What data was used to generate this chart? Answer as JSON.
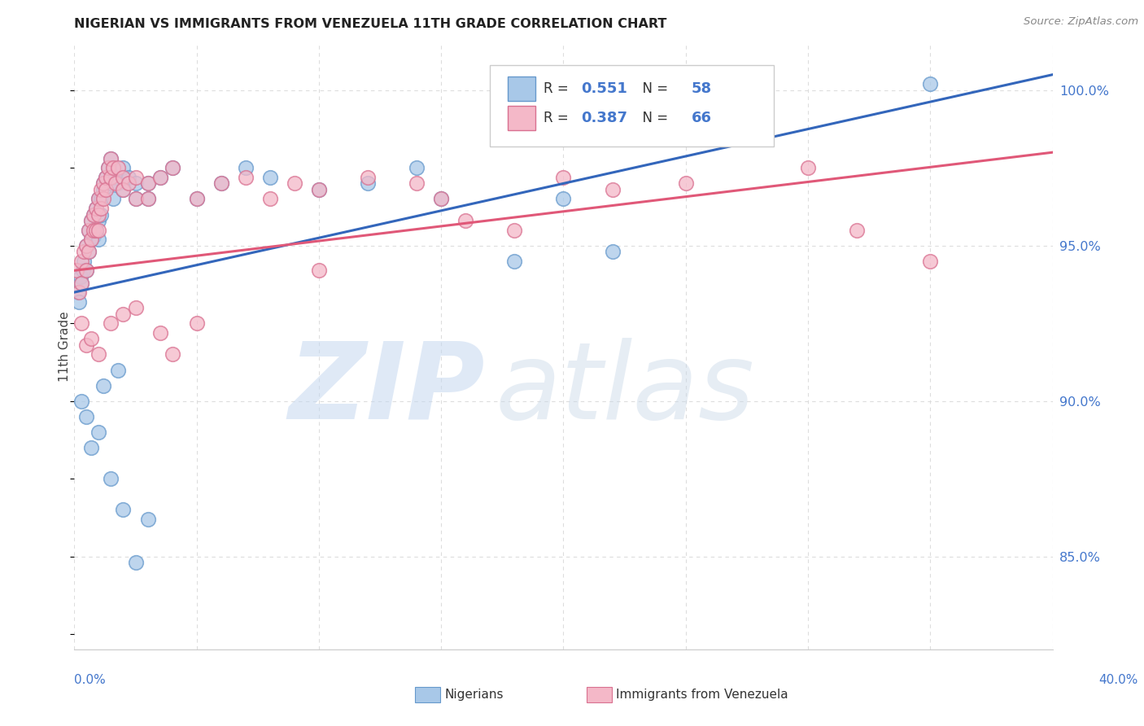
{
  "title": "NIGERIAN VS IMMIGRANTS FROM VENEZUELA 11TH GRADE CORRELATION CHART",
  "source": "Source: ZipAtlas.com",
  "ylabel": "11th Grade",
  "xmin": 0.0,
  "xmax": 40.0,
  "ymin": 82.0,
  "ymax": 101.5,
  "yticks": [
    85.0,
    90.0,
    95.0,
    100.0
  ],
  "ytick_labels": [
    "85.0%",
    "90.0%",
    "95.0%",
    "100.0%"
  ],
  "xticks": [
    0.0,
    5.0,
    10.0,
    15.0,
    20.0,
    25.0,
    30.0,
    35.0,
    40.0
  ],
  "blue_color": "#a8c8e8",
  "blue_edge_color": "#6699cc",
  "pink_color": "#f4b8c8",
  "pink_edge_color": "#d97090",
  "blue_line_color": "#3366bb",
  "pink_line_color": "#e05878",
  "blue_scatter": [
    [
      0.15,
      93.5
    ],
    [
      0.2,
      93.2
    ],
    [
      0.25,
      94.0
    ],
    [
      0.3,
      93.8
    ],
    [
      0.35,
      94.2
    ],
    [
      0.4,
      94.5
    ],
    [
      0.5,
      95.0
    ],
    [
      0.5,
      94.2
    ],
    [
      0.6,
      95.5
    ],
    [
      0.6,
      94.8
    ],
    [
      0.7,
      95.2
    ],
    [
      0.7,
      95.8
    ],
    [
      0.8,
      96.0
    ],
    [
      0.8,
      95.3
    ],
    [
      0.9,
      96.2
    ],
    [
      0.9,
      95.5
    ],
    [
      1.0,
      96.5
    ],
    [
      1.0,
      95.8
    ],
    [
      1.0,
      95.2
    ],
    [
      1.1,
      96.0
    ],
    [
      1.1,
      96.5
    ],
    [
      1.2,
      96.8
    ],
    [
      1.2,
      97.0
    ],
    [
      1.3,
      97.2
    ],
    [
      1.4,
      97.5
    ],
    [
      1.5,
      97.8
    ],
    [
      1.5,
      97.0
    ],
    [
      1.6,
      96.5
    ],
    [
      1.7,
      97.2
    ],
    [
      1.8,
      97.0
    ],
    [
      2.0,
      97.5
    ],
    [
      2.0,
      96.8
    ],
    [
      2.2,
      97.2
    ],
    [
      2.5,
      96.5
    ],
    [
      2.5,
      97.0
    ],
    [
      3.0,
      96.5
    ],
    [
      3.0,
      97.0
    ],
    [
      3.5,
      97.2
    ],
    [
      4.0,
      97.5
    ],
    [
      5.0,
      96.5
    ],
    [
      6.0,
      97.0
    ],
    [
      7.0,
      97.5
    ],
    [
      8.0,
      97.2
    ],
    [
      10.0,
      96.8
    ],
    [
      12.0,
      97.0
    ],
    [
      14.0,
      97.5
    ],
    [
      15.0,
      96.5
    ],
    [
      18.0,
      94.5
    ],
    [
      20.0,
      96.5
    ],
    [
      22.0,
      94.8
    ],
    [
      35.0,
      100.2
    ],
    [
      0.3,
      90.0
    ],
    [
      0.5,
      89.5
    ],
    [
      0.7,
      88.5
    ],
    [
      1.0,
      89.0
    ],
    [
      1.2,
      90.5
    ],
    [
      1.5,
      87.5
    ],
    [
      2.0,
      86.5
    ],
    [
      2.5,
      84.8
    ],
    [
      3.0,
      86.2
    ],
    [
      1.8,
      91.0
    ]
  ],
  "pink_scatter": [
    [
      0.1,
      94.2
    ],
    [
      0.2,
      93.5
    ],
    [
      0.3,
      94.5
    ],
    [
      0.3,
      93.8
    ],
    [
      0.4,
      94.8
    ],
    [
      0.5,
      95.0
    ],
    [
      0.5,
      94.2
    ],
    [
      0.6,
      95.5
    ],
    [
      0.6,
      94.8
    ],
    [
      0.7,
      95.2
    ],
    [
      0.7,
      95.8
    ],
    [
      0.8,
      96.0
    ],
    [
      0.8,
      95.5
    ],
    [
      0.9,
      96.2
    ],
    [
      0.9,
      95.5
    ],
    [
      1.0,
      96.5
    ],
    [
      1.0,
      96.0
    ],
    [
      1.0,
      95.5
    ],
    [
      1.1,
      96.8
    ],
    [
      1.1,
      96.2
    ],
    [
      1.2,
      97.0
    ],
    [
      1.2,
      96.5
    ],
    [
      1.3,
      97.2
    ],
    [
      1.3,
      96.8
    ],
    [
      1.4,
      97.5
    ],
    [
      1.5,
      97.8
    ],
    [
      1.5,
      97.2
    ],
    [
      1.6,
      97.5
    ],
    [
      1.7,
      97.0
    ],
    [
      1.8,
      97.5
    ],
    [
      2.0,
      97.2
    ],
    [
      2.0,
      96.8
    ],
    [
      2.2,
      97.0
    ],
    [
      2.5,
      96.5
    ],
    [
      2.5,
      97.2
    ],
    [
      3.0,
      97.0
    ],
    [
      3.0,
      96.5
    ],
    [
      3.5,
      97.2
    ],
    [
      4.0,
      97.5
    ],
    [
      5.0,
      96.5
    ],
    [
      5.0,
      92.5
    ],
    [
      6.0,
      97.0
    ],
    [
      7.0,
      97.2
    ],
    [
      8.0,
      96.5
    ],
    [
      9.0,
      97.0
    ],
    [
      10.0,
      96.8
    ],
    [
      12.0,
      97.2
    ],
    [
      14.0,
      97.0
    ],
    [
      15.0,
      96.5
    ],
    [
      18.0,
      95.5
    ],
    [
      20.0,
      97.2
    ],
    [
      22.0,
      96.8
    ],
    [
      25.0,
      97.0
    ],
    [
      30.0,
      97.5
    ],
    [
      32.0,
      95.5
    ],
    [
      35.0,
      94.5
    ],
    [
      0.3,
      92.5
    ],
    [
      0.5,
      91.8
    ],
    [
      0.7,
      92.0
    ],
    [
      1.0,
      91.5
    ],
    [
      1.5,
      92.5
    ],
    [
      2.0,
      92.8
    ],
    [
      2.5,
      93.0
    ],
    [
      3.5,
      92.2
    ],
    [
      4.0,
      91.5
    ],
    [
      10.0,
      94.2
    ],
    [
      16.0,
      95.8
    ]
  ],
  "watermark_zip": "ZIP",
  "watermark_atlas": "atlas",
  "background_color": "#ffffff",
  "grid_color": "#dddddd"
}
